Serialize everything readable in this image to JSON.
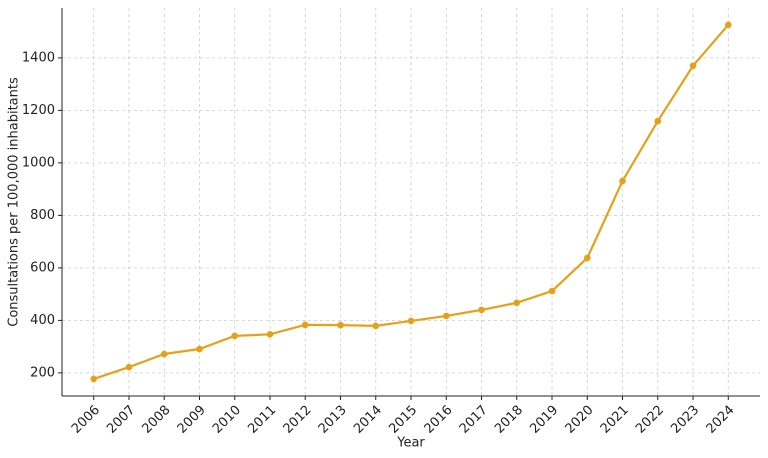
{
  "chart_data": {
    "type": "line",
    "x_label": "Year",
    "y_label": "Consultations per 100,000 inhabitants",
    "x": [
      2006,
      2007,
      2008,
      2009,
      2010,
      2011,
      2012,
      2013,
      2014,
      2015,
      2016,
      2017,
      2018,
      2019,
      2020,
      2021,
      2022,
      2023,
      2024
    ],
    "series": [
      {
        "color": "#e6a118",
        "values": [
          177,
          222,
          272,
          291,
          341,
          347,
          383,
          382,
          379,
          398,
          417,
          440,
          467,
          512,
          638,
          931,
          1159,
          1370,
          1526
        ]
      }
    ],
    "xlim": [
      2005.1,
      2024.9
    ],
    "xticks": [
      2006,
      2007,
      2008,
      2009,
      2010,
      2011,
      2012,
      2013,
      2014,
      2015,
      2016,
      2017,
      2018,
      2019,
      2020,
      2021,
      2022,
      2023,
      2024
    ],
    "ylim": [
      112,
      1590
    ],
    "yticks": [
      200,
      400,
      600,
      800,
      1000,
      1200,
      1400
    ],
    "grid": true
  }
}
